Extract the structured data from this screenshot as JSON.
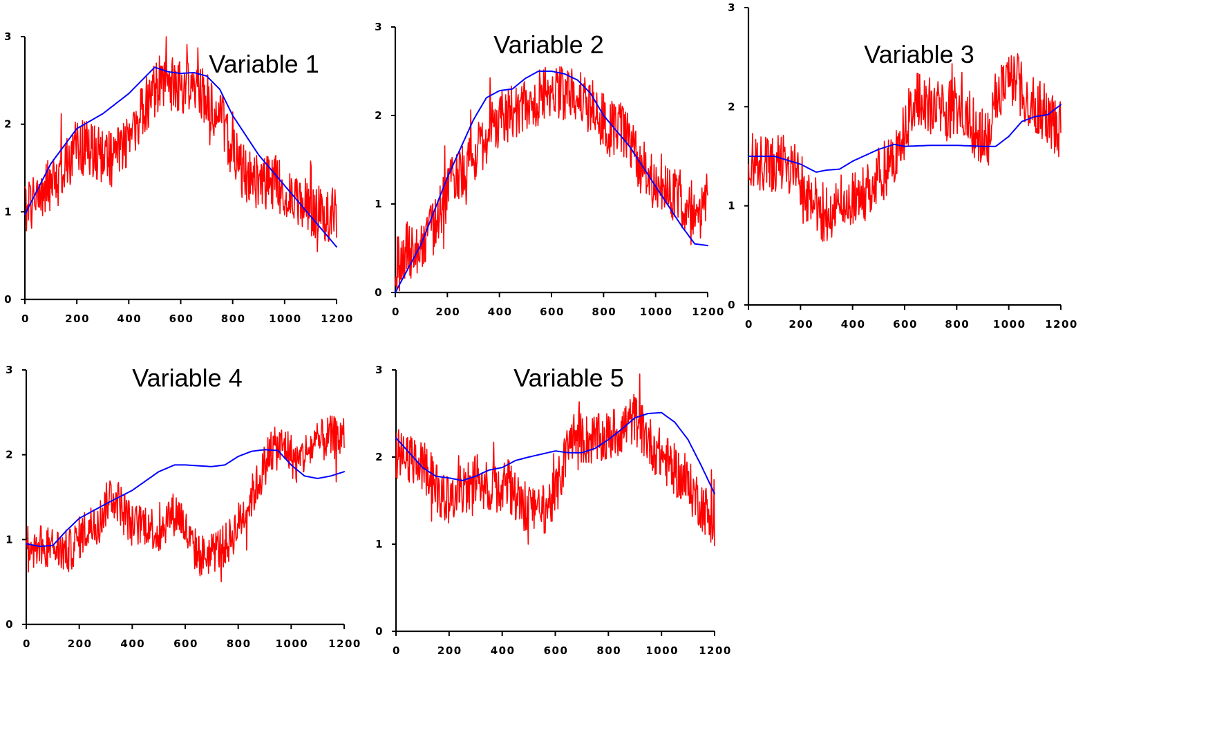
{
  "colors": {
    "observed": "#ff0000",
    "trend": "#0000ff",
    "axis": "#000000"
  },
  "chart_data": [
    {
      "type": "line",
      "title": "Variable 1",
      "xlim": [
        0,
        1200
      ],
      "ylim": [
        0,
        3
      ],
      "xticks": [
        0,
        200,
        400,
        600,
        800,
        1000,
        1200
      ],
      "xtick_labels": [
        "0",
        "200",
        "400",
        "600",
        "800",
        "1000",
        "1200"
      ],
      "yticks": [
        0,
        1,
        2,
        3
      ],
      "ytick_labels": [
        "0",
        "1",
        "2",
        "3"
      ],
      "grid": false,
      "series": [
        {
          "kind": "noisy",
          "color": "#ff0000",
          "x": [
            0,
            60,
            120,
            200,
            260,
            340,
            400,
            460,
            520,
            580,
            640,
            700,
            760,
            820,
            880,
            960,
            1040,
            1120,
            1200
          ],
          "y": [
            1.05,
            1.2,
            1.35,
            1.75,
            1.7,
            1.6,
            1.85,
            2.2,
            2.5,
            2.45,
            2.4,
            2.3,
            2.05,
            1.5,
            1.35,
            1.35,
            1.15,
            1.0,
            0.95
          ],
          "noise": 0.32
        },
        {
          "kind": "smooth",
          "color": "#0000ff",
          "x": [
            0,
            100,
            200,
            300,
            400,
            450,
            500,
            550,
            600,
            650,
            700,
            750,
            800,
            900,
            1000,
            1100,
            1200
          ],
          "y": [
            0.97,
            1.55,
            1.95,
            2.12,
            2.35,
            2.5,
            2.65,
            2.6,
            2.58,
            2.59,
            2.55,
            2.4,
            2.1,
            1.65,
            1.3,
            0.95,
            0.6
          ]
        }
      ]
    },
    {
      "type": "line",
      "title": "Variable 2",
      "xlim": [
        0,
        1200
      ],
      "ylim": [
        0,
        3
      ],
      "xticks": [
        0,
        200,
        400,
        600,
        800,
        1000,
        1200
      ],
      "xtick_labels": [
        "0",
        "200",
        "400",
        "600",
        "800",
        "1000",
        "1200"
      ],
      "yticks": [
        0,
        1,
        2,
        3
      ],
      "ytick_labels": [
        "0",
        "1",
        "2",
        "3"
      ],
      "grid": false,
      "series": [
        {
          "kind": "noisy",
          "color": "#ff0000",
          "x": [
            0,
            50,
            100,
            160,
            220,
            280,
            340,
            400,
            460,
            520,
            580,
            640,
            700,
            760,
            820,
            880,
            940,
            1000,
            1060,
            1120,
            1200
          ],
          "y": [
            0.3,
            0.5,
            0.55,
            0.8,
            1.3,
            1.45,
            1.7,
            1.95,
            2.05,
            2.1,
            2.3,
            2.25,
            2.2,
            2.1,
            1.85,
            1.85,
            1.45,
            1.2,
            1.15,
            1.0,
            0.9
          ],
          "noise": 0.32
        },
        {
          "kind": "smooth",
          "color": "#0000ff",
          "x": [
            0,
            100,
            200,
            300,
            350,
            400,
            450,
            500,
            550,
            600,
            650,
            700,
            750,
            800,
            900,
            1000,
            1100,
            1150,
            1200
          ],
          "y": [
            0.0,
            0.55,
            1.3,
            1.95,
            2.2,
            2.28,
            2.3,
            2.42,
            2.5,
            2.5,
            2.47,
            2.4,
            2.25,
            2.0,
            1.65,
            1.2,
            0.75,
            0.55,
            0.53
          ]
        }
      ]
    },
    {
      "type": "line",
      "title": "Variable 3",
      "xlim": [
        0,
        1200
      ],
      "ylim": [
        0,
        3
      ],
      "xticks": [
        0,
        200,
        400,
        600,
        800,
        1000,
        1200
      ],
      "xtick_labels": [
        "0",
        "200",
        "400",
        "600",
        "800",
        "1000",
        "1200"
      ],
      "yticks": [
        0,
        1,
        2,
        3
      ],
      "ytick_labels": [
        "0",
        "1",
        "2",
        "3"
      ],
      "grid": false,
      "series": [
        {
          "kind": "noisy",
          "color": "#ff0000",
          "x": [
            0,
            60,
            120,
            180,
            240,
            300,
            360,
            420,
            480,
            540,
            600,
            640,
            700,
            760,
            820,
            860,
            920,
            960,
            1020,
            1080,
            1140,
            1200
          ],
          "y": [
            1.45,
            1.4,
            1.45,
            1.35,
            1.05,
            0.9,
            1.0,
            1.05,
            1.25,
            1.4,
            1.75,
            2.1,
            2.0,
            1.95,
            2.05,
            1.8,
            1.65,
            2.2,
            2.3,
            2.05,
            1.95,
            1.75
          ],
          "noise": 0.3
        },
        {
          "kind": "smooth",
          "color": "#0000ff",
          "x": [
            0,
            100,
            200,
            260,
            300,
            350,
            400,
            500,
            560,
            600,
            700,
            800,
            900,
            950,
            1000,
            1050,
            1100,
            1150,
            1200
          ],
          "y": [
            1.5,
            1.5,
            1.42,
            1.34,
            1.36,
            1.37,
            1.45,
            1.57,
            1.62,
            1.6,
            1.61,
            1.61,
            1.6,
            1.6,
            1.7,
            1.85,
            1.9,
            1.92,
            2.02
          ]
        }
      ]
    },
    {
      "type": "line",
      "title": "Variable 4",
      "xlim": [
        0,
        1200
      ],
      "ylim": [
        0,
        3
      ],
      "xticks": [
        0,
        200,
        400,
        600,
        800,
        1000,
        1200
      ],
      "xtick_labels": [
        "0",
        "200",
        "400",
        "600",
        "800",
        "1000",
        "1200"
      ],
      "yticks": [
        0,
        1,
        2,
        3
      ],
      "ytick_labels": [
        "0",
        "1",
        "2",
        "3"
      ],
      "grid": false,
      "series": [
        {
          "kind": "noisy",
          "color": "#ff0000",
          "x": [
            0,
            50,
            100,
            160,
            220,
            280,
            320,
            360,
            400,
            460,
            500,
            540,
            580,
            620,
            660,
            700,
            760,
            820,
            880,
            920,
            980,
            1020,
            1080,
            1140,
            1200
          ],
          "y": [
            0.85,
            0.95,
            0.9,
            0.85,
            1.1,
            1.25,
            1.55,
            1.4,
            1.15,
            1.2,
            1.05,
            1.3,
            1.3,
            0.95,
            0.8,
            0.85,
            0.95,
            1.3,
            1.7,
            2.05,
            2.1,
            1.9,
            2.1,
            2.2,
            2.2
          ],
          "noise": 0.26
        },
        {
          "kind": "smooth",
          "color": "#0000ff",
          "x": [
            0,
            50,
            100,
            150,
            200,
            300,
            400,
            500,
            560,
            600,
            700,
            750,
            800,
            850,
            900,
            950,
            1000,
            1050,
            1100,
            1150,
            1200
          ],
          "y": [
            0.95,
            0.92,
            0.93,
            1.1,
            1.25,
            1.42,
            1.58,
            1.8,
            1.88,
            1.88,
            1.86,
            1.88,
            1.98,
            2.04,
            2.06,
            2.05,
            1.88,
            1.75,
            1.72,
            1.75,
            1.8
          ]
        }
      ]
    },
    {
      "type": "line",
      "title": "Variable 5",
      "xlim": [
        0,
        1200
      ],
      "ylim": [
        0,
        3
      ],
      "xticks": [
        0,
        200,
        400,
        600,
        800,
        1000,
        1200
      ],
      "xtick_labels": [
        "0",
        "200",
        "400",
        "600",
        "800",
        "1000",
        "1200"
      ],
      "yticks": [
        0,
        1,
        2,
        3
      ],
      "ytick_labels": [
        "0",
        "1",
        "2",
        "3"
      ],
      "grid": false,
      "series": [
        {
          "kind": "noisy",
          "color": "#ff0000",
          "x": [
            0,
            60,
            120,
            180,
            240,
            300,
            360,
            420,
            480,
            540,
            600,
            660,
            720,
            780,
            840,
            900,
            960,
            1020,
            1080,
            1140,
            1200
          ],
          "y": [
            2.05,
            1.95,
            1.85,
            1.5,
            1.6,
            1.75,
            1.65,
            1.7,
            1.45,
            1.35,
            1.55,
            2.25,
            2.2,
            2.2,
            2.3,
            2.45,
            2.15,
            1.95,
            1.75,
            1.5,
            1.25
          ],
          "noise": 0.3
        },
        {
          "kind": "smooth",
          "color": "#0000ff",
          "x": [
            0,
            50,
            100,
            150,
            200,
            250,
            300,
            350,
            400,
            450,
            500,
            600,
            650,
            700,
            750,
            800,
            850,
            900,
            950,
            1000,
            1050,
            1100,
            1150,
            1200
          ],
          "y": [
            2.22,
            2.05,
            1.88,
            1.78,
            1.76,
            1.73,
            1.78,
            1.85,
            1.88,
            1.96,
            2.0,
            2.07,
            2.05,
            2.05,
            2.1,
            2.2,
            2.32,
            2.45,
            2.5,
            2.51,
            2.4,
            2.2,
            1.9,
            1.58
          ]
        }
      ]
    }
  ]
}
